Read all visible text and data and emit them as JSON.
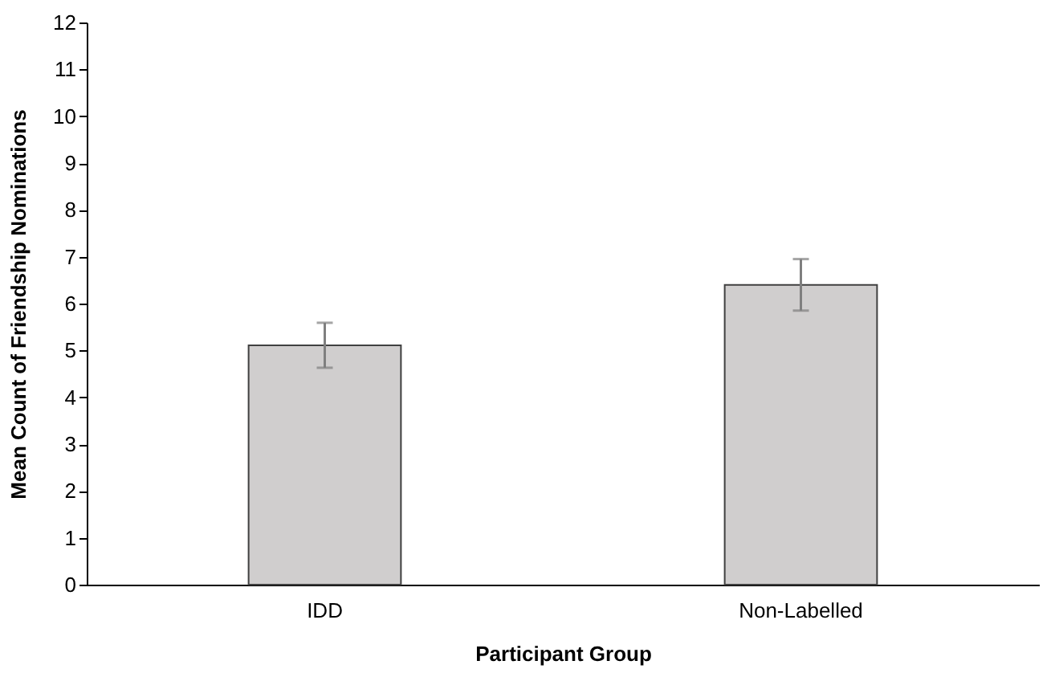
{
  "chart_data": {
    "type": "bar",
    "xlabel": "Participant Group",
    "ylabel": "Mean Count of Friendship Nominations",
    "categories": [
      "IDD",
      "Non-Labelled"
    ],
    "values": [
      5.11,
      6.4
    ],
    "errors": [
      0.48,
      0.55
    ],
    "color": "#d0cece",
    "ylim": [
      0,
      12
    ],
    "yticks": [
      0,
      1,
      2,
      3,
      4,
      5,
      6,
      7,
      8,
      9,
      10,
      11,
      12
    ],
    "grid": false
  }
}
